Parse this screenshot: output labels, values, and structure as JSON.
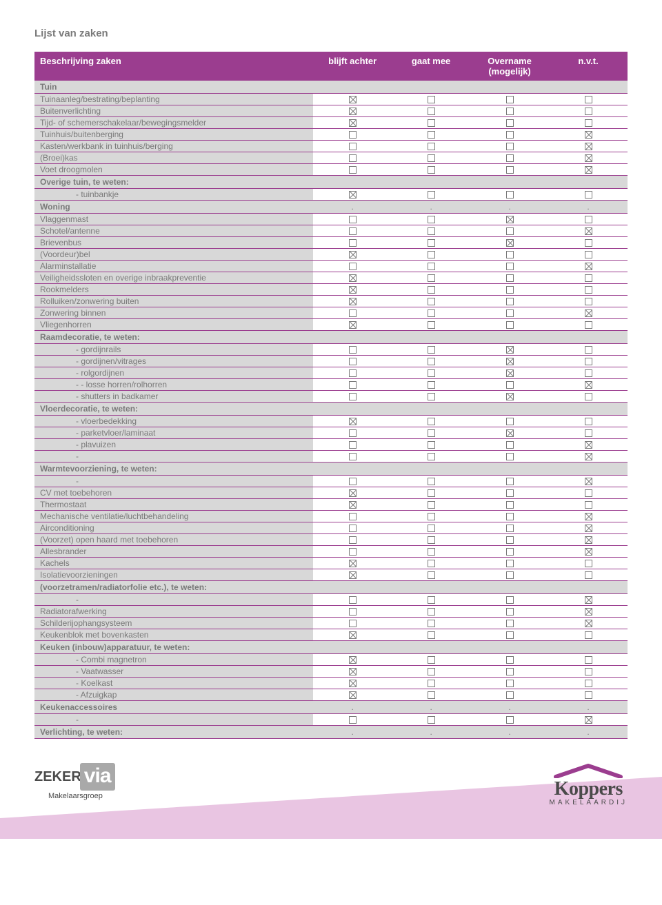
{
  "page_title": "Lijst van zaken",
  "colors": {
    "brand_purple": "#9b3d8f",
    "row_grey": "#d8d8d8",
    "text_grey": "#7a7a7a",
    "footer_lilac": "#e9c5e2"
  },
  "header": {
    "desc": "Beschrijving zaken",
    "c1": "blijft achter",
    "c2": "gaat mee",
    "c3": "Overname (mogelijk)",
    "c4": "n.v.t."
  },
  "rows": [
    {
      "type": "section",
      "label": "Tuin"
    },
    {
      "type": "item",
      "label": "Tuinaanleg/bestrating/beplanting",
      "c": [
        1,
        0,
        0,
        0
      ]
    },
    {
      "type": "item",
      "label": "Buitenverlichting",
      "c": [
        1,
        0,
        0,
        0
      ]
    },
    {
      "type": "item",
      "label": "Tijd- of schemerschakelaar/bewegingsmelder",
      "c": [
        1,
        0,
        0,
        0
      ]
    },
    {
      "type": "item",
      "label": "Tuinhuis/buitenberging",
      "c": [
        0,
        0,
        0,
        1
      ]
    },
    {
      "type": "item",
      "label": "Kasten/werkbank in tuinhuis/berging",
      "c": [
        0,
        0,
        0,
        1
      ]
    },
    {
      "type": "item",
      "label": "(Broei)kas",
      "c": [
        0,
        0,
        0,
        1
      ]
    },
    {
      "type": "item",
      "label": "Voet droogmolen",
      "c": [
        0,
        0,
        0,
        1
      ]
    },
    {
      "type": "section",
      "label": "Overige tuin, te weten:"
    },
    {
      "type": "item",
      "indent": true,
      "label": "- tuinbankje",
      "c": [
        1,
        0,
        0,
        0
      ]
    },
    {
      "type": "section",
      "label": "Woning",
      "dots": true
    },
    {
      "type": "item",
      "label": "Vlaggenmast",
      "c": [
        0,
        0,
        1,
        0
      ]
    },
    {
      "type": "item",
      "label": "Schotel/antenne",
      "c": [
        0,
        0,
        0,
        1
      ]
    },
    {
      "type": "item",
      "label": "Brievenbus",
      "c": [
        0,
        0,
        1,
        0
      ]
    },
    {
      "type": "item",
      "label": "(Voordeur)bel",
      "c": [
        1,
        0,
        0,
        0
      ]
    },
    {
      "type": "item",
      "label": "Alarminstallatie",
      "c": [
        0,
        0,
        0,
        1
      ]
    },
    {
      "type": "item",
      "label": "Veiligheidssloten en overige inbraakpreventie",
      "c": [
        1,
        0,
        0,
        0
      ]
    },
    {
      "type": "item",
      "label": "Rookmelders",
      "c": [
        1,
        0,
        0,
        0
      ]
    },
    {
      "type": "item",
      "label": "Rolluiken/zonwering buiten",
      "c": [
        1,
        0,
        0,
        0
      ]
    },
    {
      "type": "item",
      "label": "Zonwering binnen",
      "c": [
        0,
        0,
        0,
        1
      ]
    },
    {
      "type": "item",
      "label": "Vliegenhorren",
      "c": [
        1,
        0,
        0,
        0
      ]
    },
    {
      "type": "section",
      "label": "Raamdecoratie, te weten:"
    },
    {
      "type": "item",
      "indent": true,
      "label": "- gordijnrails",
      "c": [
        0,
        0,
        1,
        0
      ]
    },
    {
      "type": "item",
      "indent": true,
      "label": "- gordijnen/vitrages",
      "c": [
        0,
        0,
        1,
        0
      ]
    },
    {
      "type": "item",
      "indent": true,
      "label": "- rolgordijnen",
      "c": [
        0,
        0,
        1,
        0
      ]
    },
    {
      "type": "item",
      "indent": true,
      "label": "- - losse horren/rolhorren",
      "c": [
        0,
        0,
        0,
        1
      ]
    },
    {
      "type": "item",
      "indent": true,
      "label": "- shutters in badkamer",
      "c": [
        0,
        0,
        1,
        0
      ]
    },
    {
      "type": "section",
      "label": "Vloerdecoratie, te weten:"
    },
    {
      "type": "item",
      "indent": true,
      "label": "- vloerbedekking",
      "c": [
        1,
        0,
        0,
        0
      ]
    },
    {
      "type": "item",
      "indent": true,
      "label": "- parketvloer/laminaat",
      "c": [
        0,
        0,
        1,
        0
      ]
    },
    {
      "type": "item",
      "indent": true,
      "label": "- plavuizen",
      "c": [
        0,
        0,
        0,
        1
      ]
    },
    {
      "type": "item",
      "indent": true,
      "label": "-",
      "c": [
        0,
        0,
        0,
        1
      ]
    },
    {
      "type": "section",
      "label": "Warmtevoorziening, te weten:"
    },
    {
      "type": "item",
      "indent": true,
      "label": "-",
      "c": [
        0,
        0,
        0,
        1
      ]
    },
    {
      "type": "item",
      "label": "CV met toebehoren",
      "c": [
        1,
        0,
        0,
        0
      ]
    },
    {
      "type": "item",
      "label": "Thermostaat",
      "c": [
        1,
        0,
        0,
        0
      ]
    },
    {
      "type": "item",
      "label": "Mechanische ventilatie/luchtbehandeling",
      "c": [
        0,
        0,
        0,
        1
      ]
    },
    {
      "type": "item",
      "label": "Airconditioning",
      "c": [
        0,
        0,
        0,
        1
      ]
    },
    {
      "type": "item",
      "label": "(Voorzet) open haard met toebehoren",
      "c": [
        0,
        0,
        0,
        1
      ]
    },
    {
      "type": "item",
      "label": "Allesbrander",
      "c": [
        0,
        0,
        0,
        1
      ]
    },
    {
      "type": "item",
      "label": "Kachels",
      "c": [
        1,
        0,
        0,
        0
      ]
    },
    {
      "type": "item",
      "label": "Isolatievoorzieningen",
      "c": [
        1,
        0,
        0,
        0
      ]
    },
    {
      "type": "section",
      "label": "(voorzetramen/radiatorfolie etc.), te weten:"
    },
    {
      "type": "item",
      "indent": true,
      "label": "-",
      "c": [
        0,
        0,
        0,
        1
      ]
    },
    {
      "type": "item",
      "label": "Radiatorafwerking",
      "c": [
        0,
        0,
        0,
        1
      ]
    },
    {
      "type": "item",
      "label": "Schilderijophangsysteem",
      "c": [
        0,
        0,
        0,
        1
      ]
    },
    {
      "type": "item",
      "label": "Keukenblok met bovenkasten",
      "c": [
        1,
        0,
        0,
        0
      ]
    },
    {
      "type": "section",
      "label": "Keuken (inbouw)apparatuur, te weten:"
    },
    {
      "type": "item",
      "indent": true,
      "label": "- Combi magnetron",
      "c": [
        1,
        0,
        0,
        0
      ]
    },
    {
      "type": "item",
      "indent": true,
      "label": "- Vaatwasser",
      "c": [
        1,
        0,
        0,
        0
      ]
    },
    {
      "type": "item",
      "indent": true,
      "label": "- Koelkast",
      "c": [
        1,
        0,
        0,
        0
      ]
    },
    {
      "type": "item",
      "indent": true,
      "label": "- Afzuigkap",
      "c": [
        1,
        0,
        0,
        0
      ]
    },
    {
      "type": "section",
      "label": "Keukenaccessoires",
      "dots": true
    },
    {
      "type": "item",
      "indent": true,
      "label": "-",
      "c": [
        0,
        0,
        0,
        1
      ]
    },
    {
      "type": "section",
      "label": "Verlichting, te weten:",
      "dots": true
    }
  ],
  "footer": {
    "zeker": "ZEKER",
    "via": "via",
    "via_sub": "Makelaarsgroep",
    "koppers": "Koppers",
    "koppers_sub": "MAKELAARDIJ"
  }
}
